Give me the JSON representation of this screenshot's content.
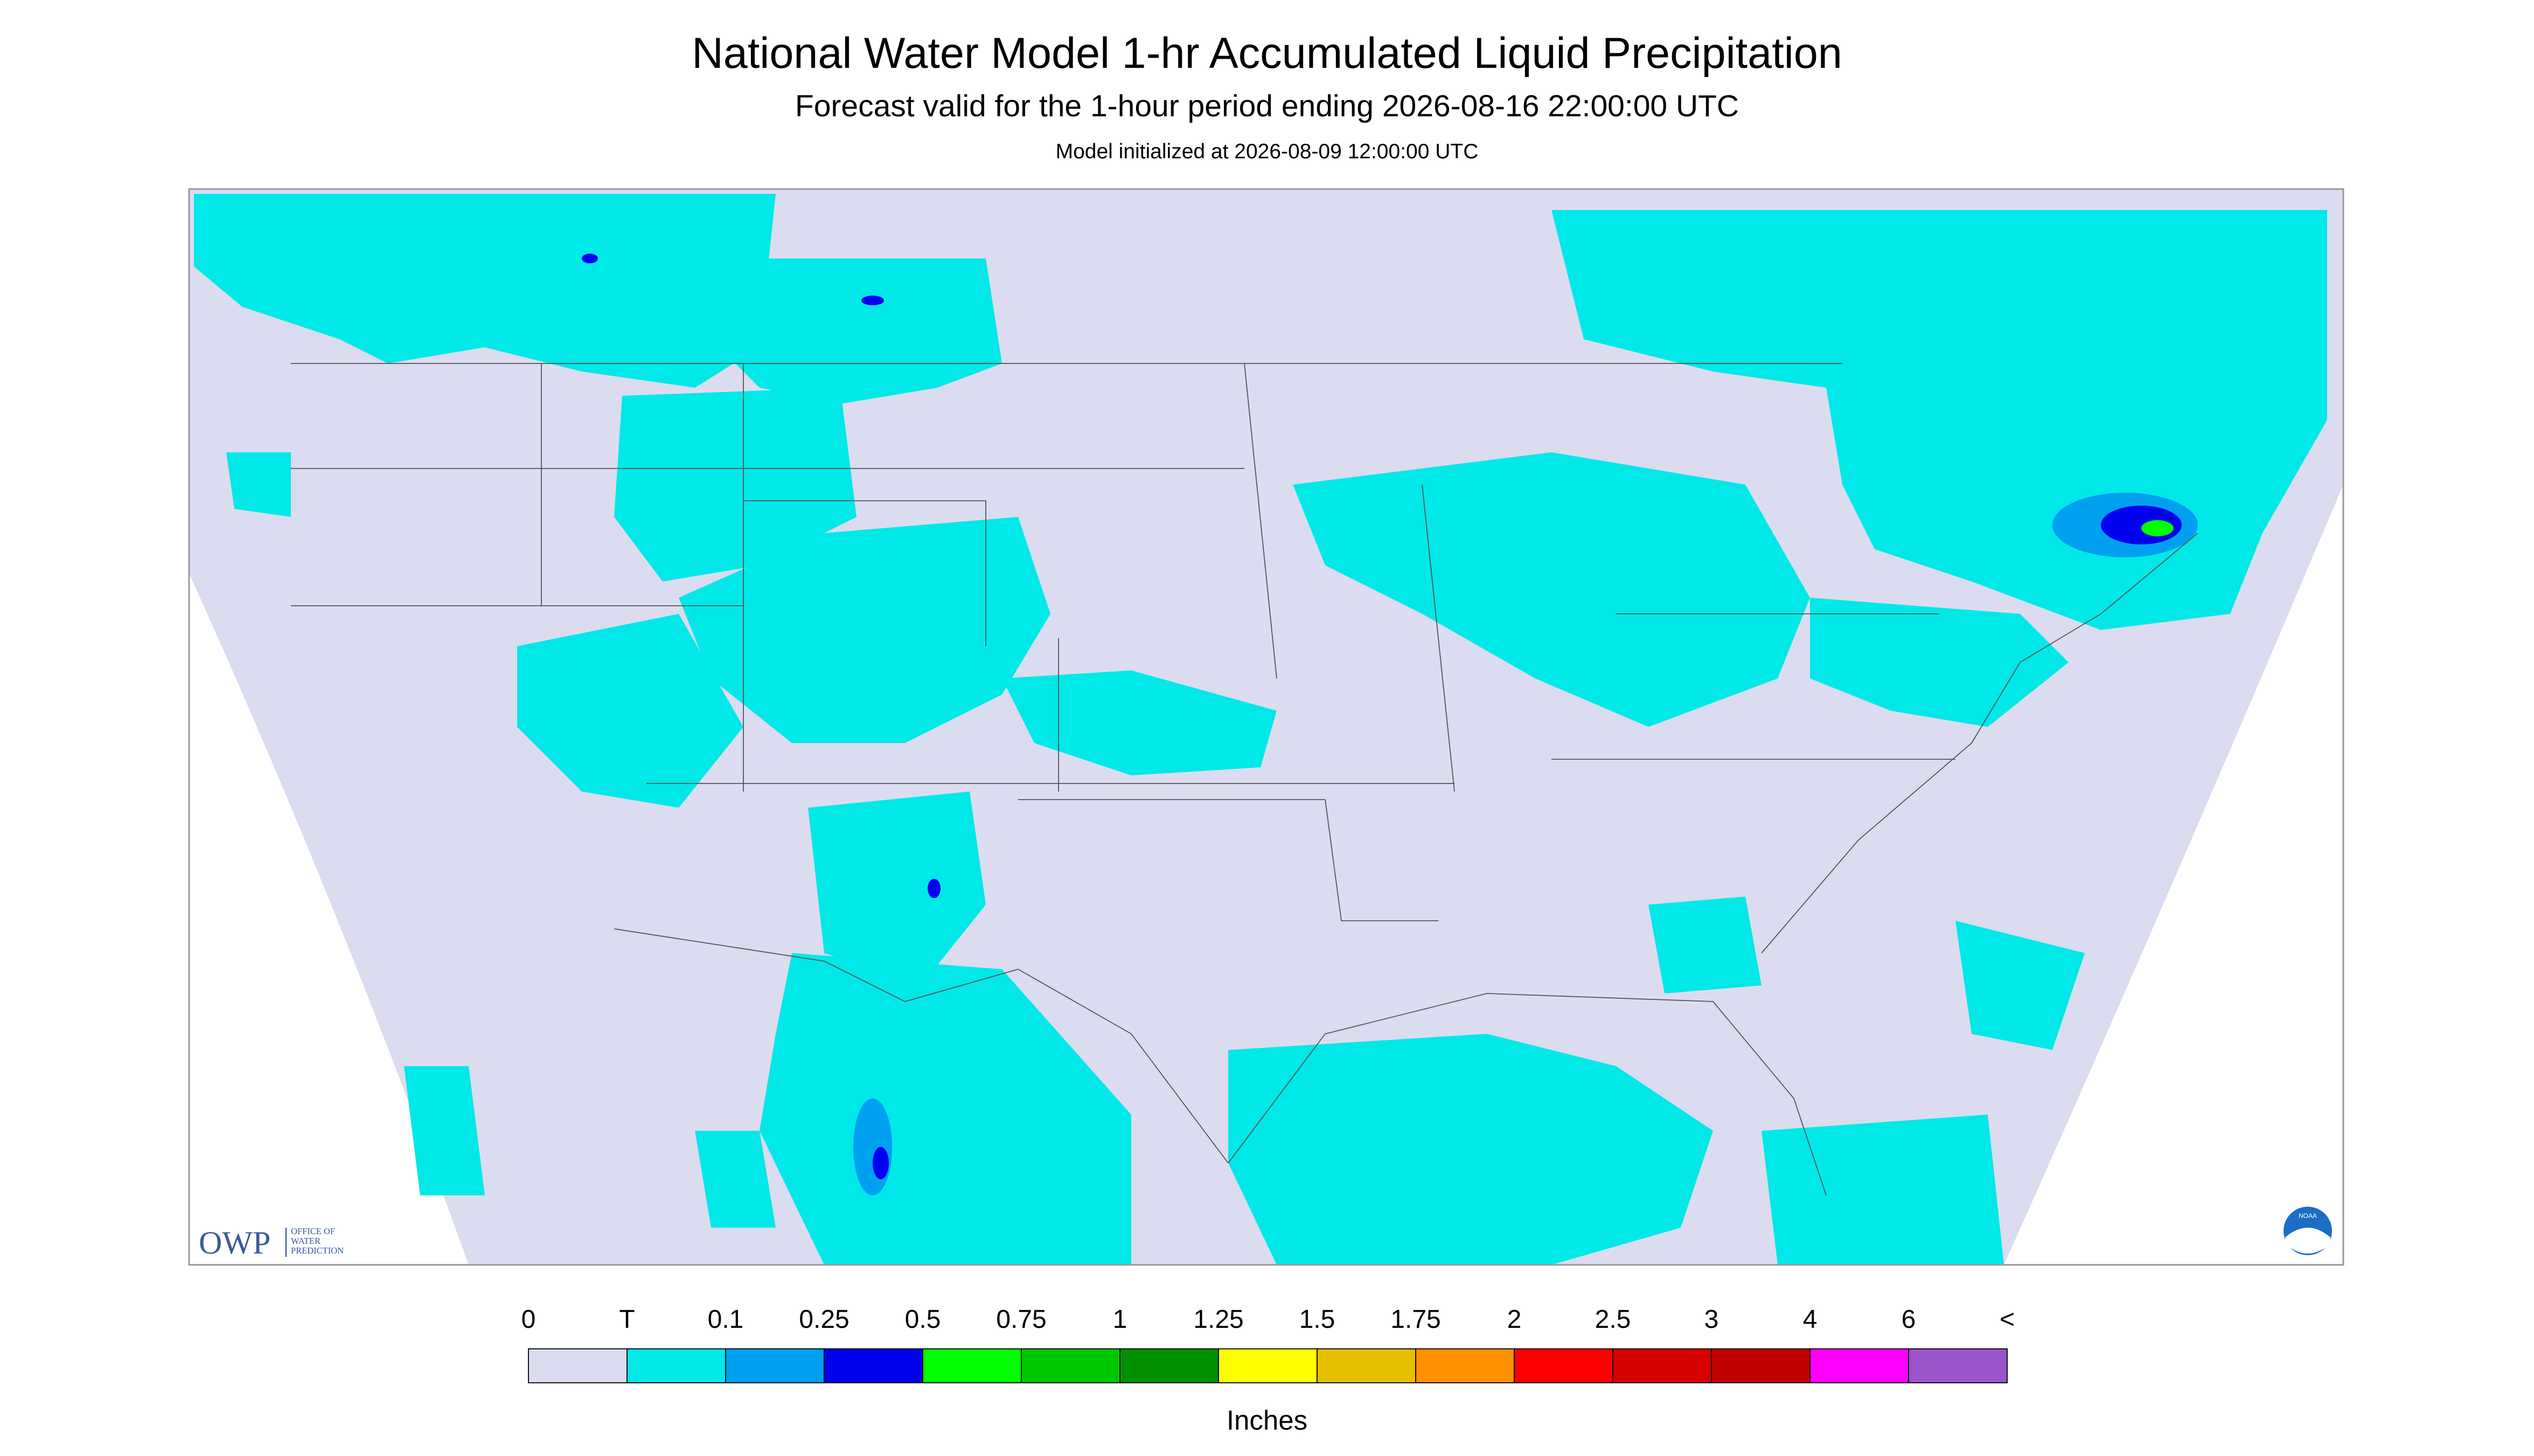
{
  "header": {
    "title": "National Water Model 1-hr Accumulated Liquid Precipitation",
    "subtitle": "Forecast valid for the 1-hour period ending 2026-08-16 22:00:00 UTC",
    "initialized": "Model initialized at 2026-08-09 12:00:00 UTC"
  },
  "legend": {
    "labels": [
      "0",
      "T",
      "0.1",
      "0.25",
      "0.5",
      "0.75",
      "1",
      "1.25",
      "1.5",
      "1.75",
      "2",
      "2.5",
      "3",
      "4",
      "6",
      "<"
    ],
    "colors": [
      "#dcdcf0",
      "#00e8e8",
      "#00a0f0",
      "#0000f0",
      "#00ff00",
      "#00c800",
      "#009000",
      "#ffff00",
      "#e6be00",
      "#ff9000",
      "#ff0000",
      "#d60000",
      "#c00000",
      "#ff00ff",
      "#9955c9"
    ],
    "unit": "Inches"
  },
  "logos": {
    "owp": "OWP",
    "owp_text": [
      "OFFICE OF",
      "WATER",
      "PREDICTION"
    ],
    "noaa": "NOAA"
  }
}
